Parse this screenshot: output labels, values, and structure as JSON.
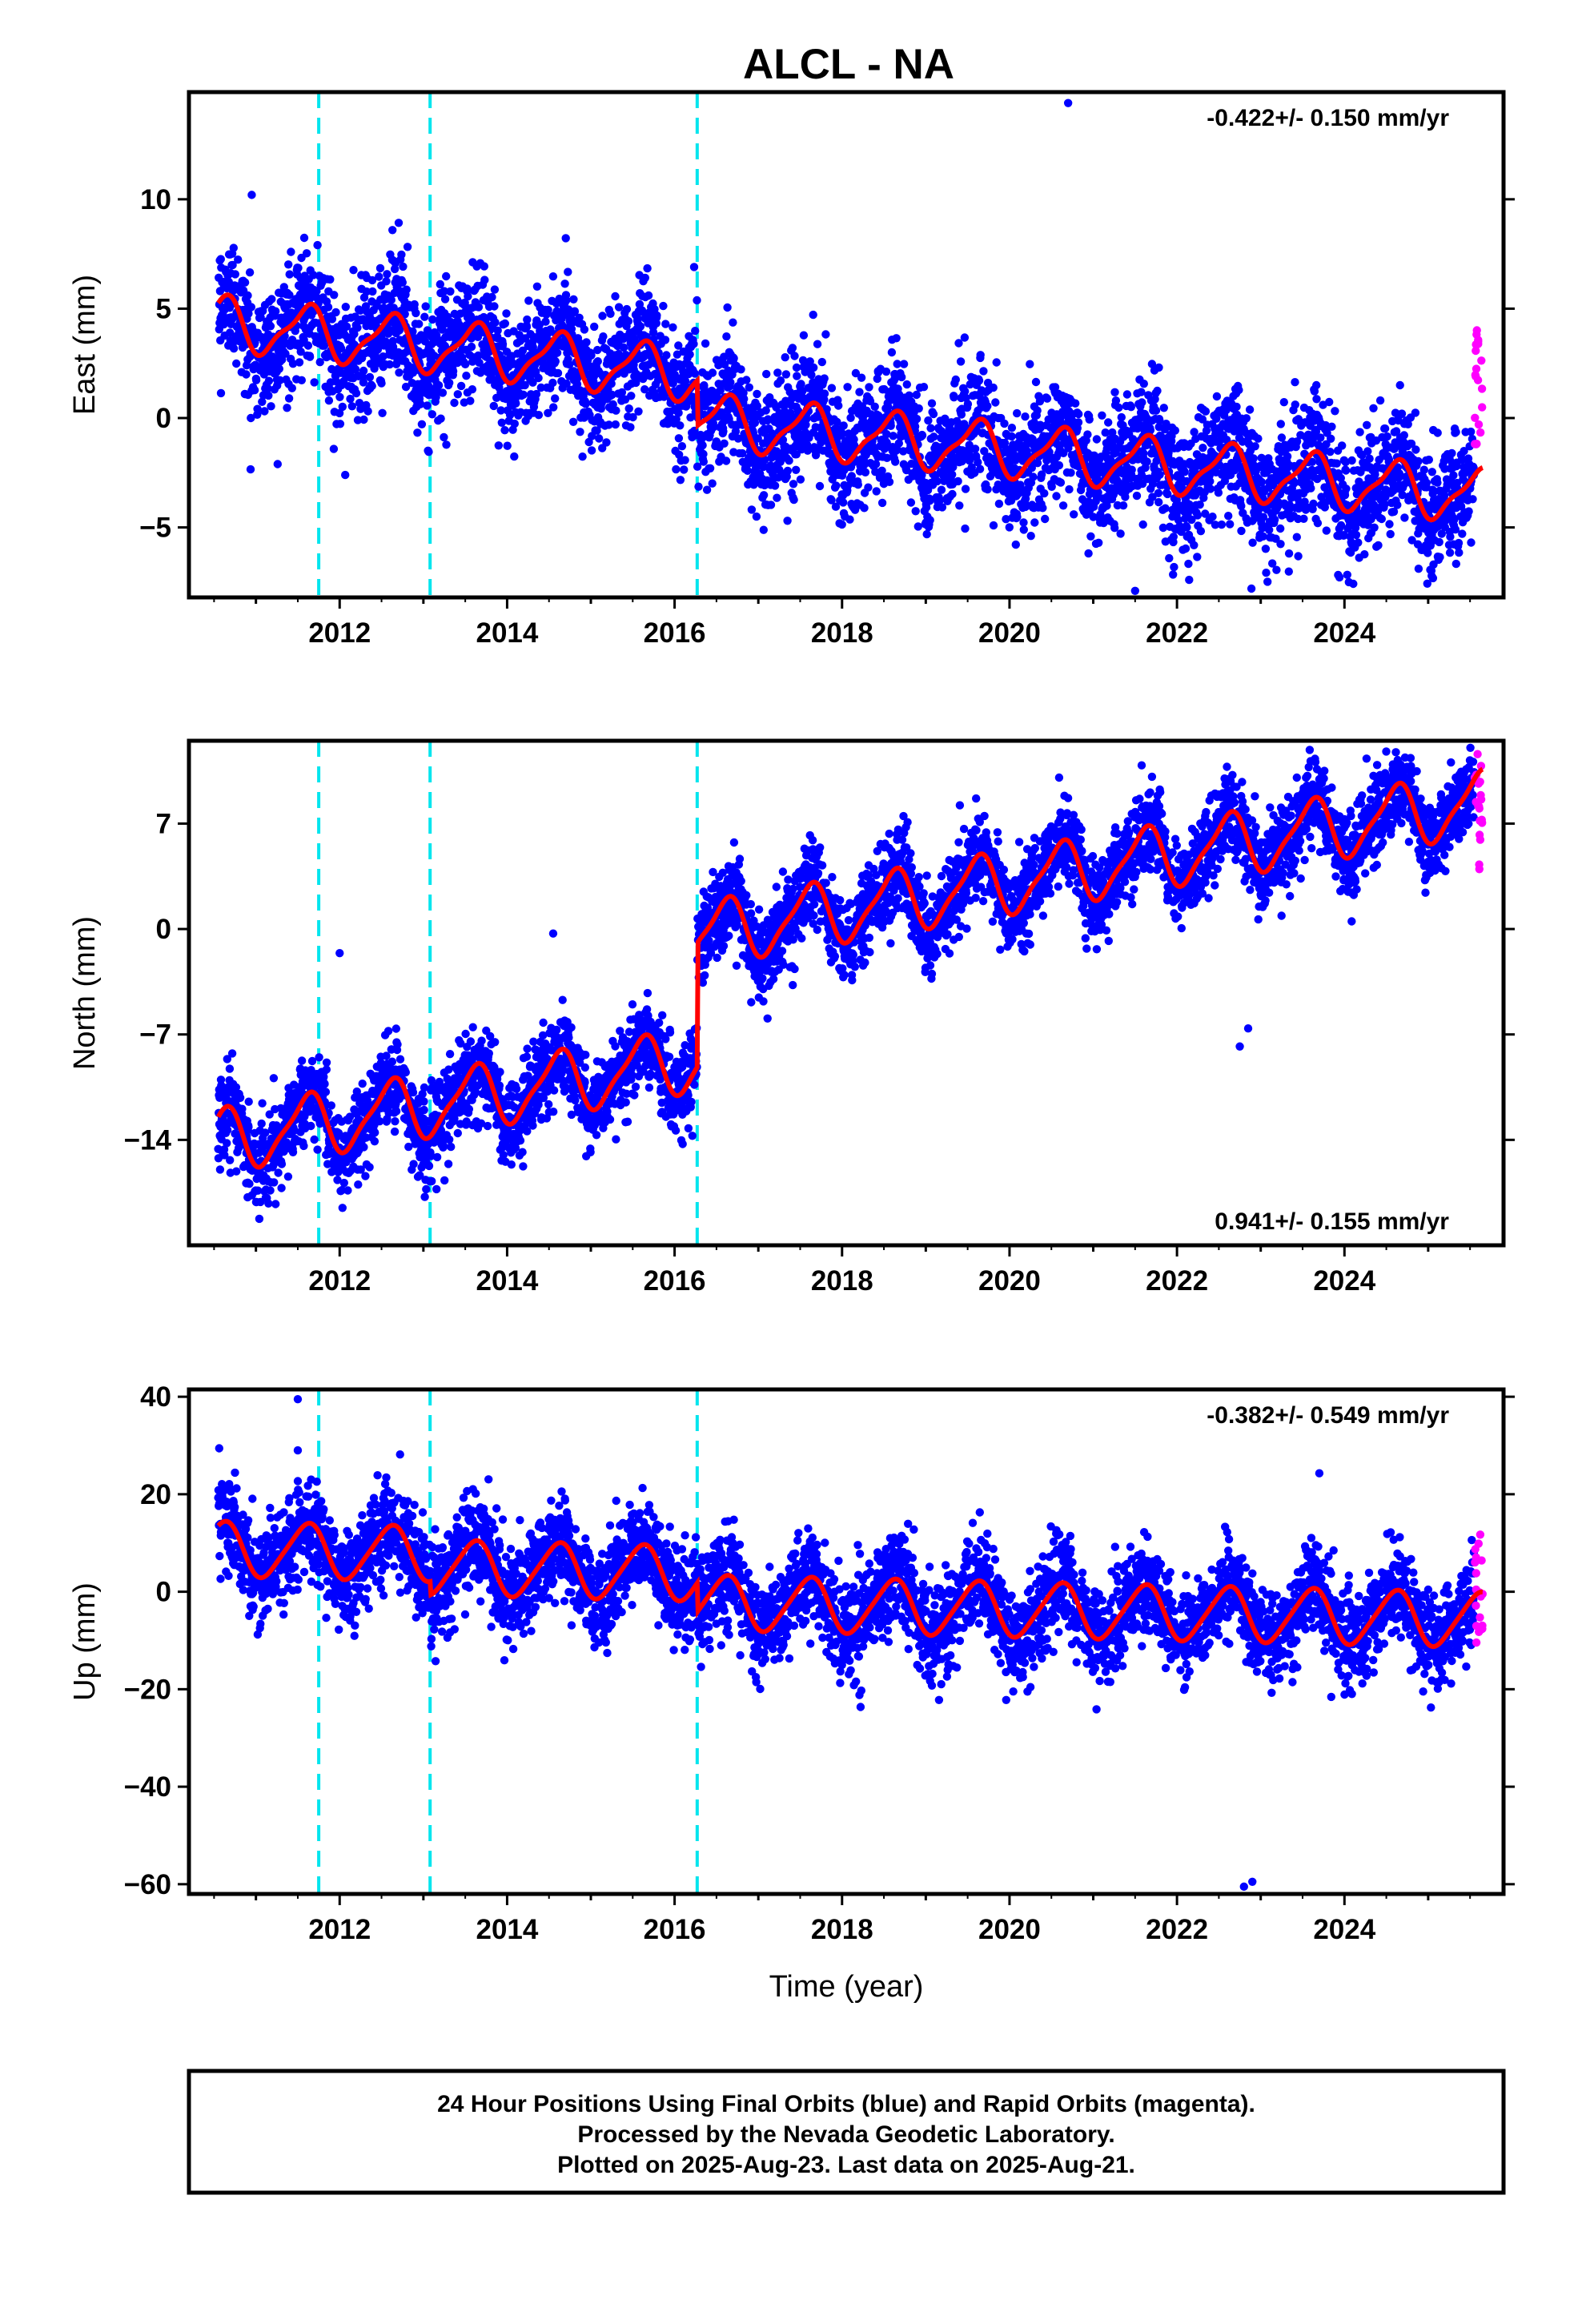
{
  "title": "ALCL - NA",
  "footer": {
    "lines": [
      "24 Hour Positions Using Final Orbits (blue) and Rapid Orbits (magenta).",
      "Processed by the Nevada Geodetic Laboratory.",
      "Plotted on 2025-Aug-23. Last data on 2025-Aug-21."
    ]
  },
  "colors": {
    "final_orbits": "#0000ff",
    "rapid_orbits": "#ff00ff",
    "model_fit": "#ff0000",
    "equipment_change": "#00e5ee",
    "frame": "#000000"
  },
  "chart_data": [
    {
      "type": "scatter",
      "component": "east",
      "ylabel": "East (mm)",
      "xlabel": "",
      "xlim": [
        2010.2,
        2025.9
      ],
      "ylim": [
        -8.2,
        14.9
      ],
      "xticks": [
        2012,
        2014,
        2016,
        2018,
        2020,
        2022,
        2024
      ],
      "yticks": [
        -5,
        0,
        5,
        10
      ],
      "rate_label": "-0.422+/- 0.150 mm/yr",
      "rate_position": "top-right",
      "equipment_changes": [
        2011.75,
        2013.08,
        2016.27
      ],
      "model": {
        "rate_mm_per_yr": -0.422,
        "segment_offsets": [
          {
            "start": 2010.55,
            "end": 2016.27,
            "intercept_at_2010": 4.6,
            "rate": -0.42
          },
          {
            "start": 2016.27,
            "end": 2025.65,
            "intercept_at_2016.27": -0.1,
            "rate": -0.37
          }
        ],
        "annual_amplitude": 1.15,
        "semiannual_amplitude": 0.35
      },
      "scatter_noise_mm": 1.4,
      "outliers": [
        {
          "x": 2020.7,
          "y": 14.4
        },
        {
          "x": 2021.5,
          "y": -7.9
        },
        {
          "x": 2010.95,
          "y": 10.2
        }
      ],
      "rapid_points": {
        "x_range": [
          2025.55,
          2025.65
        ],
        "y_range": [
          -2.0,
          4.3
        ]
      }
    },
    {
      "type": "scatter",
      "component": "north",
      "ylabel": "North (mm)",
      "xlabel": "",
      "xlim": [
        2010.2,
        2025.9
      ],
      "ylim": [
        -21.0,
        12.5
      ],
      "xticks": [
        2012,
        2014,
        2016,
        2018,
        2020,
        2022,
        2024
      ],
      "yticks": [
        -14,
        -7,
        0,
        7
      ],
      "rate_label": "0.941+/- 0.155 mm/yr",
      "rate_position": "bottom-right",
      "equipment_changes": [
        2011.75,
        2013.08,
        2016.27
      ],
      "model": {
        "rate_mm_per_yr": 0.941,
        "segment_offsets": [
          {
            "start": 2010.55,
            "end": 2016.27,
            "intercept_at_2010": -14.6,
            "rate": 0.95
          },
          {
            "start": 2016.27,
            "end": 2025.65,
            "intercept_at_2016.27": -0.4,
            "rate": 0.94
          }
        ],
        "annual_amplitude": 2.0,
        "semiannual_amplitude": 0.5
      },
      "scatter_noise_mm": 1.4,
      "outliers": [
        {
          "x": 2022.75,
          "y": -7.8
        },
        {
          "x": 2022.85,
          "y": -6.6
        },
        {
          "x": 2014.55,
          "y": -0.3
        },
        {
          "x": 2012.0,
          "y": -1.6
        }
      ],
      "rapid_points": {
        "x_range": [
          2025.55,
          2025.65
        ],
        "y_range": [
          3.3,
          11.8
        ]
      }
    },
    {
      "type": "scatter",
      "component": "up",
      "ylabel": "Up (mm)",
      "xlabel": "Time (year)",
      "xlim": [
        2010.2,
        2025.9
      ],
      "ylim": [
        -62.0,
        41.5
      ],
      "xticks": [
        2012,
        2014,
        2016,
        2018,
        2020,
        2022,
        2024
      ],
      "yticks": [
        -60,
        -40,
        -20,
        0,
        20,
        40
      ],
      "rate_label": "-0.382+/- 0.549 mm/yr",
      "rate_position": "top-right",
      "equipment_changes": [
        2011.75,
        2013.08,
        2016.27
      ],
      "model": {
        "rate_mm_per_yr": -0.382,
        "segment_offsets": [
          {
            "start": 2010.55,
            "end": 2013.08,
            "intercept_at_2010": 9.0,
            "rate": -0.4
          },
          {
            "start": 2013.08,
            "end": 2016.27,
            "intercept_at_2013.08": 5.0,
            "rate": -0.4
          },
          {
            "start": 2016.27,
            "end": 2025.65,
            "intercept_at_2016.27": -2.2,
            "rate": -0.38
          }
        ],
        "annual_amplitude": 5.5,
        "semiannual_amplitude": 0.8
      },
      "scatter_noise_mm": 4.8,
      "outliers": [
        {
          "x": 2011.5,
          "y": 39.5
        },
        {
          "x": 2023.7,
          "y": 24.3
        },
        {
          "x": 2022.9,
          "y": -59.5
        },
        {
          "x": 2022.8,
          "y": -60.5
        },
        {
          "x": 2011.5,
          "y": 29.0
        }
      ],
      "rapid_points": {
        "x_range": [
          2025.55,
          2025.65
        ],
        "y_range": [
          -10.5,
          12.5
        ]
      }
    }
  ]
}
